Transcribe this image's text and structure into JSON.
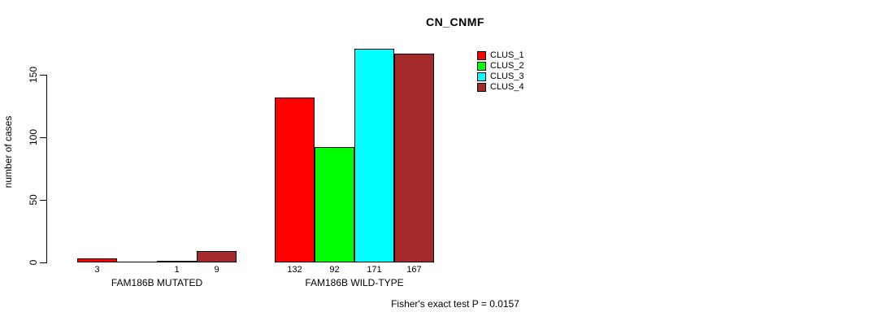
{
  "chart_data": {
    "type": "bar",
    "title": "CN_CNMF",
    "ylabel": "number of cases",
    "xlabel": "",
    "groups": [
      "FAM186B MUTATED",
      "FAM186B WILD-TYPE"
    ],
    "series": [
      {
        "name": "CLUS_1",
        "color": "#ff0000",
        "values": [
          3,
          132
        ]
      },
      {
        "name": "CLUS_2",
        "color": "#00ff00",
        "values": [
          0,
          92
        ]
      },
      {
        "name": "CLUS_3",
        "color": "#00ffff",
        "values": [
          1,
          171
        ]
      },
      {
        "name": "CLUS_4",
        "color": "#a52a2a",
        "values": [
          9,
          167
        ]
      }
    ],
    "bar_labels": [
      [
        "3",
        "",
        "1",
        "9"
      ],
      [
        "132",
        "92",
        "171",
        "167"
      ]
    ],
    "y_ticks": [
      0,
      50,
      100,
      150
    ],
    "ylim": [
      0,
      171
    ],
    "grid": false,
    "legend_position": "top-right-inside",
    "annotation": "Fisher's exact test P = 0.0157"
  }
}
